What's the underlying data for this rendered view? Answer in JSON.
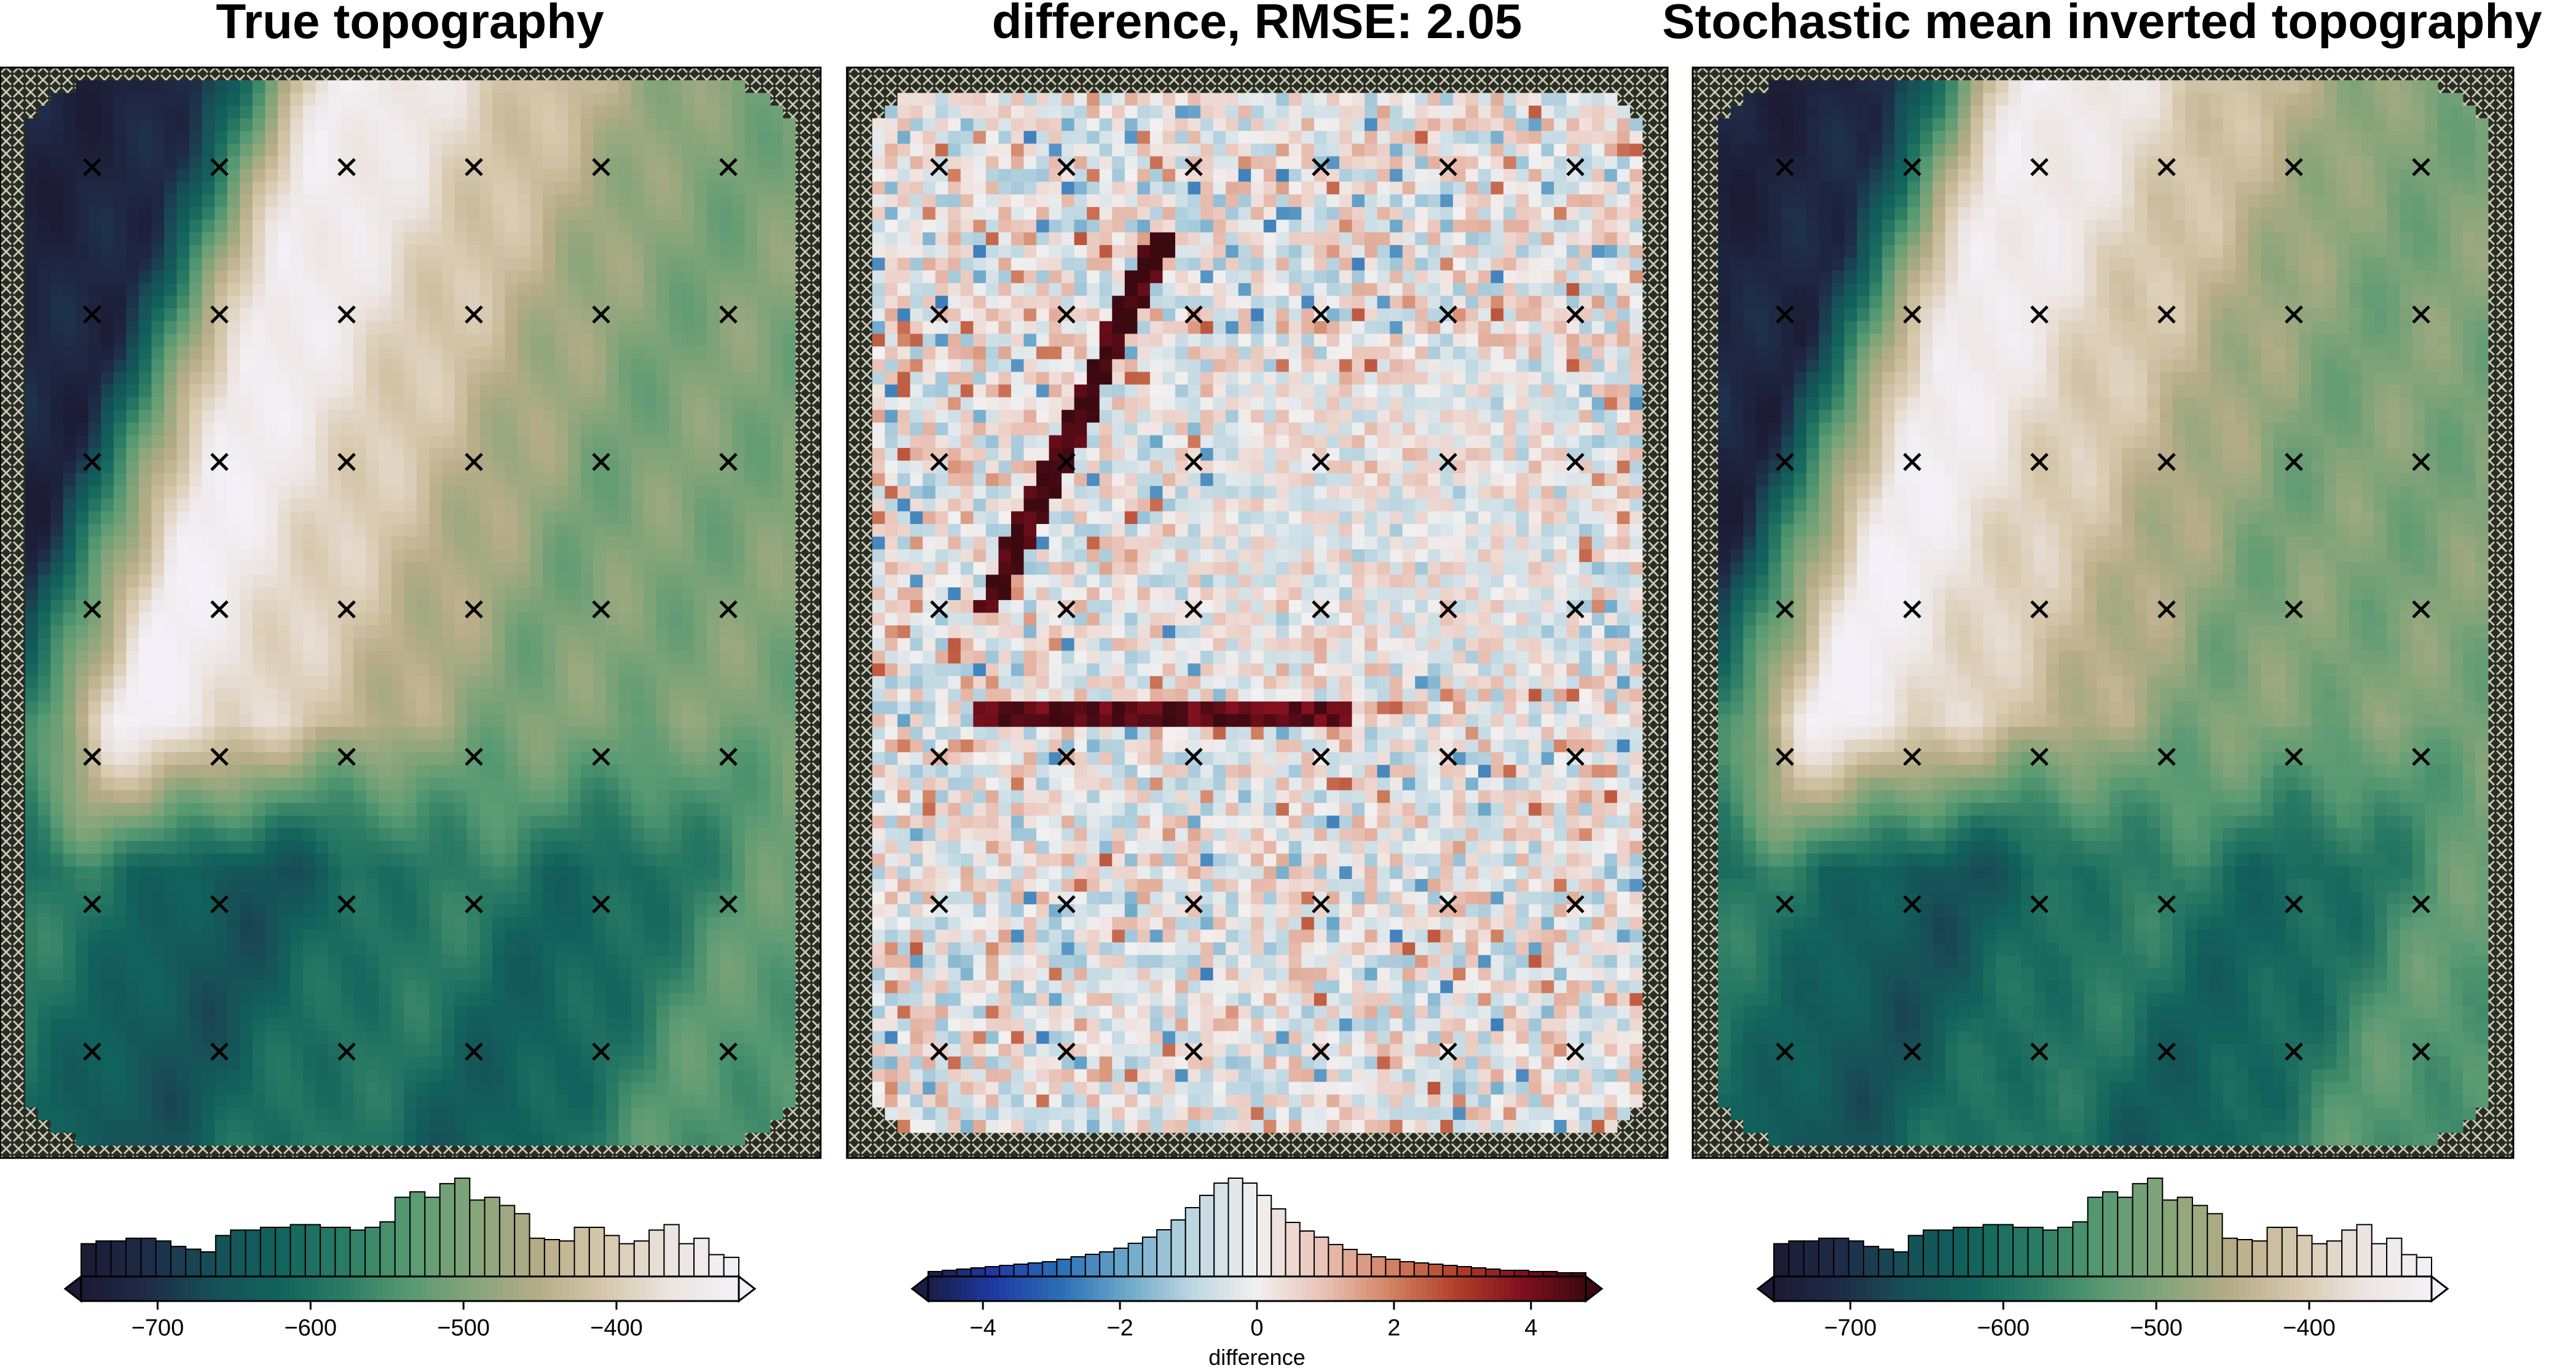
{
  "chart_data": [
    {
      "type": "heatmap",
      "title": "True topography",
      "colormap": "rain",
      "zlim": [
        -750,
        -320
      ],
      "grid_size": [
        65,
        86
      ],
      "cross_markers": true,
      "colorbar": {
        "ticks": [
          -700,
          -600,
          -500,
          -400
        ],
        "tick_labels": [
          "−700",
          "−600",
          "−500",
          "−400"
        ],
        "label": "",
        "extend": [
          "below",
          "above"
        ],
        "histogram": true
      },
      "histogram_counts": [
        24,
        26,
        26,
        28,
        28,
        26,
        22,
        20,
        18,
        30,
        34,
        34,
        36,
        36,
        38,
        38,
        36,
        36,
        34,
        36,
        40,
        58,
        62,
        58,
        68,
        72,
        56,
        58,
        52,
        46,
        28,
        27,
        26,
        36,
        36,
        30,
        24,
        26,
        34,
        38,
        24,
        28,
        16,
        14
      ]
    },
    {
      "type": "heatmap",
      "title": "difference, RMSE: 2.05",
      "colormap": "balance",
      "zlim": [
        -4.8,
        4.8
      ],
      "grid_size": [
        65,
        86
      ],
      "cross_markers": true,
      "rmse": 2.05,
      "colorbar": {
        "ticks": [
          -4,
          -2,
          0,
          2,
          4
        ],
        "tick_labels": [
          "−4",
          "−2",
          "0",
          "2",
          "4"
        ],
        "label": "difference",
        "extend": [
          "both"
        ],
        "histogram": true
      },
      "histogram_counts": [
        4,
        5,
        6,
        7,
        8,
        9,
        10,
        11,
        12,
        14,
        16,
        18,
        20,
        23,
        27,
        32,
        38,
        46,
        56,
        66,
        76,
        80,
        76,
        66,
        55,
        44,
        37,
        32,
        26,
        22,
        18,
        16,
        14,
        12,
        11,
        10,
        9,
        8,
        7,
        6,
        5,
        5,
        4,
        4,
        3,
        3
      ]
    },
    {
      "type": "heatmap",
      "title": "Stochastic mean inverted topography",
      "colormap": "rain",
      "zlim": [
        -750,
        -320
      ],
      "grid_size": [
        65,
        86
      ],
      "cross_markers": true,
      "colorbar": {
        "ticks": [
          -700,
          -600,
          -500,
          -400
        ],
        "tick_labels": [
          "−700",
          "−600",
          "−500",
          "−400"
        ],
        "label": "",
        "extend": [
          "below",
          "above"
        ],
        "histogram": true
      },
      "histogram_counts": [
        24,
        26,
        26,
        28,
        28,
        26,
        22,
        20,
        18,
        30,
        34,
        34,
        36,
        36,
        38,
        38,
        36,
        36,
        34,
        36,
        40,
        58,
        62,
        58,
        68,
        72,
        56,
        58,
        52,
        46,
        28,
        27,
        26,
        36,
        36,
        30,
        24,
        26,
        34,
        38,
        24,
        28,
        16,
        14
      ]
    }
  ],
  "colors": {
    "rain": [
      "#1d1a33",
      "#1e2b47",
      "#175057",
      "#11625c",
      "#2b7c64",
      "#589a72",
      "#88a57a",
      "#b8ad88",
      "#d8c9ae",
      "#ece5e2",
      "#f3f1f7"
    ],
    "balance": [
      "#181d44",
      "#1f3aa3",
      "#2a6db5",
      "#6aa7c9",
      "#bcd6e1",
      "#f2f0f0",
      "#e9c2b6",
      "#d38466",
      "#b2412a",
      "#82101e",
      "#3c0911"
    ]
  }
}
